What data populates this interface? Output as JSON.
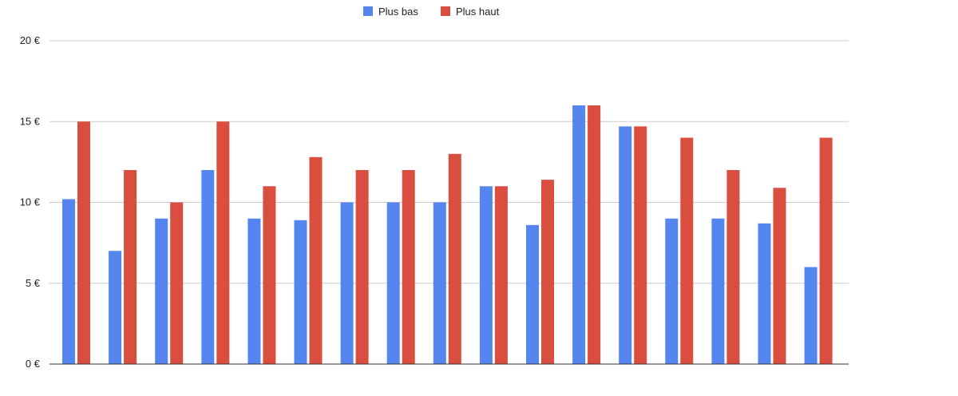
{
  "chart_data": {
    "type": "bar",
    "title": "",
    "xlabel": "",
    "ylabel": "",
    "ylim": [
      0,
      20
    ],
    "y_ticks": [
      {
        "value": 0,
        "label": "0 €"
      },
      {
        "value": 5,
        "label": "5 €"
      },
      {
        "value": 10,
        "label": "10 €"
      },
      {
        "value": 15,
        "label": "15 €"
      },
      {
        "value": 20,
        "label": "20 €"
      }
    ],
    "grid": true,
    "legend_position": "top-center",
    "categories_count": 17,
    "series": [
      {
        "name": "Plus bas",
        "color": "#5585ee",
        "values": [
          10.2,
          7,
          9,
          12,
          9,
          8.9,
          10,
          10,
          10,
          11,
          8.6,
          16,
          14.7,
          9,
          9,
          8.7,
          6
        ]
      },
      {
        "name": "Plus haut",
        "color": "#d94e3f",
        "values": [
          15,
          12,
          10,
          15,
          11,
          12.8,
          12,
          12,
          13,
          11,
          11.4,
          16,
          14.7,
          14,
          12,
          10.9,
          14
        ]
      }
    ]
  }
}
